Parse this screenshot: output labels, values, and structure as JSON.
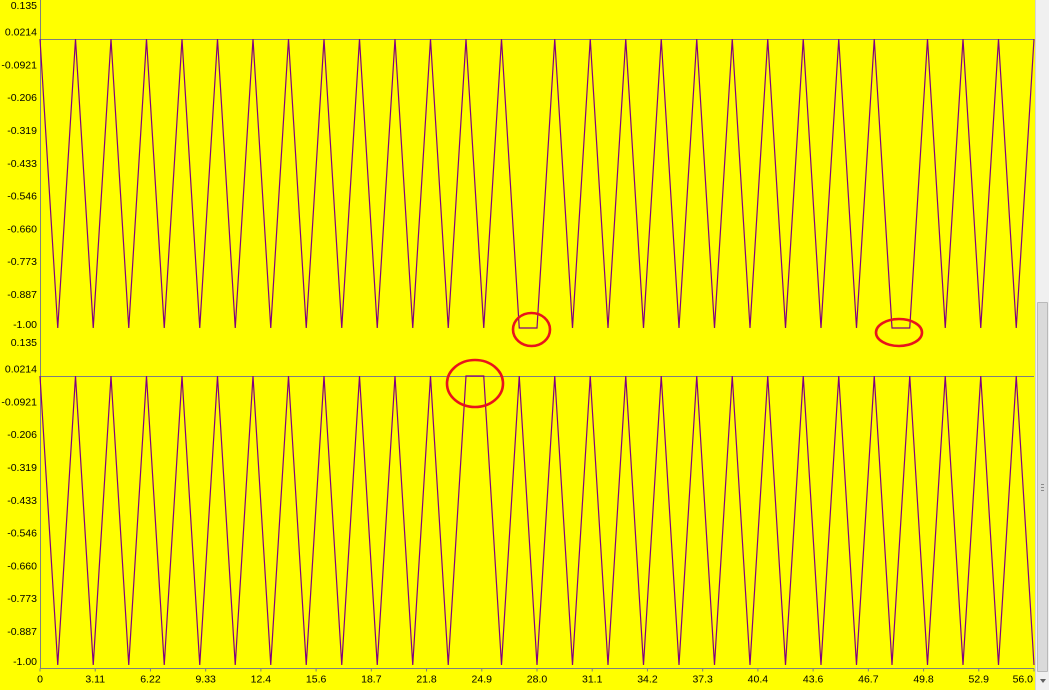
{
  "colors": {
    "background": "#ffff00",
    "series": "#800080",
    "reference_line": "#7f7f7f",
    "highlight": "#e8141b"
  },
  "scrollbar": {
    "position": 1.0,
    "visible_fraction": 0.55,
    "grip_icon": "grip-lines-icon",
    "down_icon": "chevron-down-icon"
  },
  "chart_data": [
    {
      "type": "line",
      "xlim": [
        0,
        56.0
      ],
      "ylim": [
        -1.0,
        0.135
      ],
      "yticks": [
        "0.135",
        "0.0214",
        "-0.0921",
        "-0.206",
        "-0.319",
        "-0.433",
        "-0.546",
        "-0.660",
        "-0.773",
        "-0.887",
        "-1.00"
      ],
      "reference_line": 0,
      "grid": false,
      "series": [
        {
          "x": [
            0,
            1,
            2,
            3,
            4,
            5,
            6,
            7,
            8,
            9,
            10,
            11,
            12,
            13,
            14,
            15,
            16,
            17,
            18,
            19,
            20,
            21,
            22,
            23,
            24,
            25,
            26,
            27,
            28,
            29,
            30,
            31,
            32,
            33,
            34,
            35,
            36,
            37,
            38,
            39,
            40,
            41,
            42,
            43,
            44,
            45,
            46,
            47,
            48,
            49,
            50,
            51,
            52,
            53,
            54,
            55,
            56
          ],
          "y": [
            0,
            -1,
            0,
            -1,
            0,
            -1,
            0,
            -1,
            0,
            -1,
            0,
            -1,
            0,
            -1,
            0,
            -1,
            0,
            -1,
            0,
            -1,
            0,
            -1,
            0,
            -1,
            0,
            -1,
            0,
            -1,
            -1,
            0,
            -1,
            0,
            -1,
            0,
            -1,
            0,
            -1,
            0,
            -1,
            0,
            -1,
            0,
            -1,
            0,
            -1,
            0,
            -1,
            0,
            -1,
            -1,
            0,
            -1,
            0,
            -1,
            0,
            -1,
            0
          ]
        }
      ]
    },
    {
      "type": "line",
      "xlim": [
        0,
        56.0
      ],
      "ylim": [
        -1.0,
        0.135
      ],
      "yticks": [
        "0.135",
        "0.0214",
        "-0.0921",
        "-0.206",
        "-0.319",
        "-0.433",
        "-0.546",
        "-0.660",
        "-0.773",
        "-0.887",
        "-1.00"
      ],
      "xticks": [
        "0",
        "3.11",
        "6.22",
        "9.33",
        "12.4",
        "15.6",
        "18.7",
        "21.8",
        "24.9",
        "28.0",
        "31.1",
        "34.2",
        "37.3",
        "40.4",
        "43.6",
        "46.7",
        "49.8",
        "52.9",
        "56.0"
      ],
      "reference_line": 0,
      "grid": false,
      "series": [
        {
          "x": [
            0,
            1,
            2,
            3,
            4,
            5,
            6,
            7,
            8,
            9,
            10,
            11,
            12,
            13,
            14,
            15,
            16,
            17,
            18,
            19,
            20,
            21,
            22,
            23,
            24,
            25,
            26,
            27,
            28,
            29,
            30,
            31,
            32,
            33,
            34,
            35,
            36,
            37,
            38,
            39,
            40,
            41,
            42,
            43,
            44,
            45,
            46,
            47,
            48,
            49,
            50,
            51,
            52,
            53,
            54,
            55,
            56
          ],
          "y": [
            0,
            -1,
            0,
            -1,
            0,
            -1,
            0,
            -1,
            0,
            -1,
            0,
            -1,
            0,
            -1,
            0,
            -1,
            0,
            -1,
            0,
            -1,
            0,
            -1,
            0,
            -1,
            0,
            0,
            -1,
            0,
            -1,
            0,
            -1,
            0,
            -1,
            0,
            -1,
            0,
            -1,
            0,
            -1,
            0,
            -1,
            0,
            -1,
            0,
            -1,
            0,
            -1,
            0,
            -1,
            0,
            -1,
            0,
            -1,
            0,
            -1,
            0,
            -1
          ]
        }
      ]
    }
  ]
}
